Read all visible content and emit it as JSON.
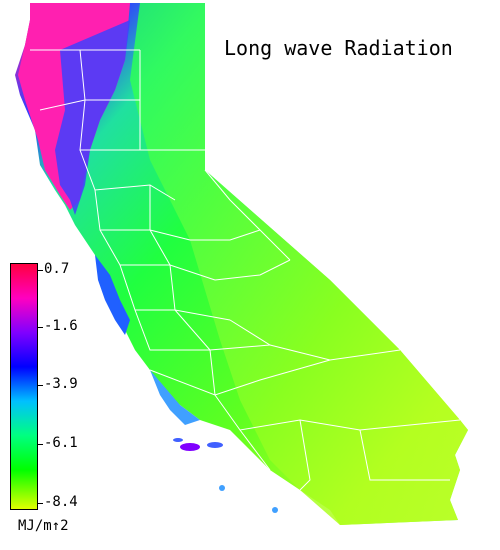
{
  "title": "Long wave Radiation",
  "legend": {
    "ticks": [
      "0.7",
      "-1.6",
      "-3.9",
      "-6.1",
      "-8.4"
    ],
    "units": "MJ/m↑2",
    "colors": [
      "#ff0040",
      "#ff00c0",
      "#8000ff",
      "#0000ff",
      "#00c0ff",
      "#00ff80",
      "#00ff00",
      "#e0ff00"
    ]
  },
  "palette": {
    "coast_north": "#ff20a0",
    "coast_blue": "#2040ff",
    "coast_cyan": "#20c0ff",
    "valley_green": "#20ff60",
    "desert_yellow": "#c0ff20",
    "boundary": "#ffffff"
  }
}
